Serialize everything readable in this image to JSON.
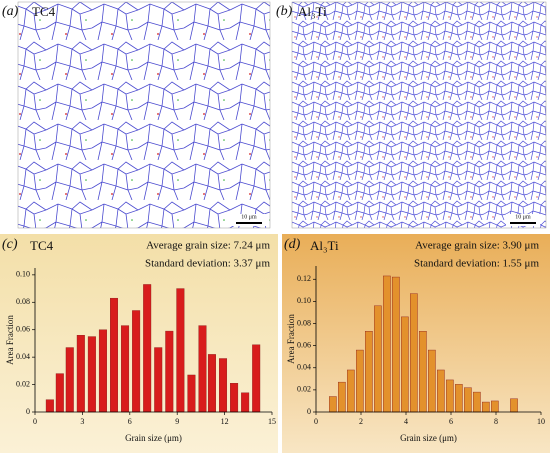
{
  "panels": [
    {
      "label": "(a)",
      "name": "TC4",
      "scale_bar": "10 μm"
    },
    {
      "label": "(b)",
      "name": "Al₃Ti",
      "scale_bar": "10 μm"
    },
    {
      "label": "(c)"
    },
    {
      "label": "(d)"
    }
  ],
  "chart_data": [
    {
      "type": "bar",
      "title": "TC4",
      "annotations": [
        "Average grain size: 7.24 μm",
        "Standard deviation: 3.37 μm"
      ],
      "x_label": "Grain size (μm)",
      "y_label": "Area Fraction",
      "x": [
        0.94,
        1.57,
        2.2,
        2.9,
        3.6,
        4.3,
        5.0,
        5.7,
        6.4,
        7.1,
        7.8,
        8.5,
        9.2,
        9.9,
        10.6,
        11.2,
        11.9,
        12.6,
        13.3,
        14.0
      ],
      "values": [
        0.009,
        0.028,
        0.047,
        0.056,
        0.055,
        0.06,
        0.083,
        0.063,
        0.074,
        0.093,
        0.047,
        0.059,
        0.09,
        0.027,
        0.063,
        0.042,
        0.039,
        0.021,
        0.014,
        0.049
      ],
      "color": "#d81c1c",
      "xlim": [
        0,
        15
      ],
      "xticks": [
        0,
        3,
        6,
        9,
        12,
        15
      ],
      "ylim": [
        0,
        0.105
      ],
      "yticks": [
        0,
        0.02,
        0.04,
        0.06,
        0.08,
        {
          "value": 0.1,
          "label": "0.10"
        }
      ]
    },
    {
      "type": "bar",
      "title": "Al₃Ti",
      "annotations": [
        "Average grain size: 3.90 μm",
        "Standard deviation: 1.55 μm"
      ],
      "x_label": "Grain size (μm)",
      "y_label": "Area Fraction",
      "x": [
        0.75,
        1.15,
        1.55,
        1.95,
        2.35,
        2.75,
        3.15,
        3.55,
        3.95,
        4.35,
        4.75,
        5.15,
        5.55,
        5.95,
        6.35,
        6.75,
        7.15,
        7.55,
        7.95,
        8.8
      ],
      "values": [
        0.014,
        0.027,
        0.038,
        0.056,
        0.073,
        0.096,
        0.123,
        0.122,
        0.086,
        0.107,
        0.073,
        0.056,
        0.038,
        0.029,
        0.025,
        0.022,
        0.018,
        0.009,
        0.01,
        0.012
      ],
      "color": "#e3912c",
      "xlim": [
        0,
        10
      ],
      "xticks": [
        0,
        2,
        4,
        6,
        8,
        10
      ],
      "ylim": [
        0,
        0.132
      ],
      "yticks": [
        0,
        0.02,
        0.04,
        0.06,
        0.08,
        {
          "value": 0.1,
          "label": "0.10"
        },
        0.12
      ]
    }
  ]
}
